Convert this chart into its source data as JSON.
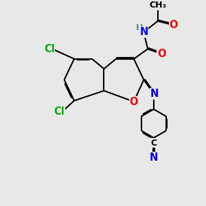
{
  "bg_color": "#e8e8e8",
  "bond_color": "#000000",
  "bond_width": 1.5,
  "dbo": 0.055,
  "atom_colors": {
    "H": "#5a8a9a",
    "N": "#0000ee",
    "O": "#ee0000",
    "Cl": "#00aa00",
    "C": "#000000"
  },
  "fs": 10.5,
  "fss": 9.0
}
